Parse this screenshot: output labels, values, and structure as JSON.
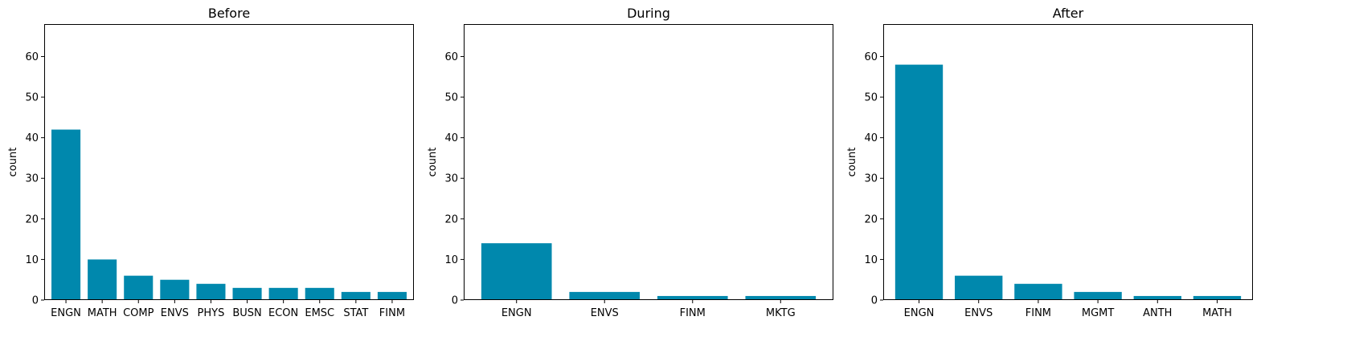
{
  "colors": {
    "bar": "#0088ad",
    "axis": "#000000",
    "background": "#ffffff"
  },
  "chart_data": [
    {
      "type": "bar",
      "title": "Before",
      "xlabel": "",
      "ylabel": "count",
      "ylim": [
        0,
        68
      ],
      "yticks": [
        0,
        10,
        20,
        30,
        40,
        50,
        60
      ],
      "grid": false,
      "categories": [
        "ENGN",
        "MATH",
        "COMP",
        "ENVS",
        "PHYS",
        "BUSN",
        "ECON",
        "EMSC",
        "STAT",
        "FINM"
      ],
      "values": [
        42,
        10,
        6,
        5,
        4,
        3,
        3,
        3,
        2,
        2
      ]
    },
    {
      "type": "bar",
      "title": "During",
      "xlabel": "",
      "ylabel": "count",
      "ylim": [
        0,
        68
      ],
      "yticks": [
        0,
        10,
        20,
        30,
        40,
        50,
        60
      ],
      "grid": false,
      "categories": [
        "ENGN",
        "ENVS",
        "FINM",
        "MKTG"
      ],
      "values": [
        14,
        2,
        1,
        1
      ]
    },
    {
      "type": "bar",
      "title": "After",
      "xlabel": "",
      "ylabel": "count",
      "ylim": [
        0,
        68
      ],
      "yticks": [
        0,
        10,
        20,
        30,
        40,
        50,
        60
      ],
      "grid": false,
      "categories": [
        "ENGN",
        "ENVS",
        "FINM",
        "MGMT",
        "ANTH",
        "MATH"
      ],
      "values": [
        58,
        6,
        4,
        2,
        1,
        1
      ]
    }
  ]
}
